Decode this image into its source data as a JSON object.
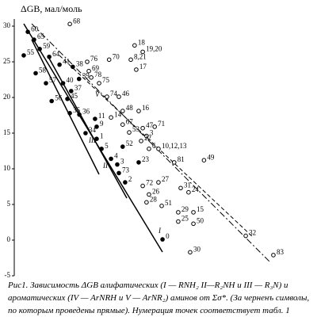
{
  "chart_data": {
    "type": "scatter",
    "y_label": "ΔGB, мал/моль",
    "ylim": [
      -5,
      31
    ],
    "yticks": [
      -5,
      0,
      5,
      10,
      15,
      20,
      25,
      30
    ],
    "xlim": [
      0,
      100
    ],
    "point_labels": [
      "60",
      "68",
      "65",
      "59",
      "55",
      "64",
      "58",
      "41",
      "38",
      "76",
      "70",
      "18",
      "19,20",
      "8,21",
      "17",
      "69",
      "57",
      "40",
      "39",
      "78",
      "75",
      "37",
      "56",
      "45",
      "35",
      "36",
      "74",
      "46",
      "48",
      "16",
      "11",
      "14",
      "9",
      "67",
      "34",
      "53",
      "47",
      "71",
      "3",
      "1",
      "22",
      "5",
      "52",
      "6",
      "10,12,13",
      "4",
      "23",
      "81",
      "49",
      "3",
      "73",
      "2",
      "72",
      "27",
      "26",
      "28",
      "31",
      "24",
      "51",
      "29",
      "15",
      "25",
      "50",
      "0",
      "30",
      "32",
      "83"
    ],
    "x": [
      5,
      20.5,
      7.3,
      9.4,
      3.5,
      12.9,
      7.9,
      16.7,
      21.6,
      26.9,
      35,
      44.4,
      47.4,
      43,
      45,
      27.5,
      11.7,
      18,
      23.9,
      28.4,
      31.3,
      21,
      13.8,
      19.6,
      20.5,
      24,
      34.2,
      38.6,
      40,
      45.9,
      29.8,
      35.7,
      30.4,
      40,
      26.3,
      42.4,
      47.4,
      51.8,
      48.8,
      30.4,
      46.8,
      32.2,
      40,
      49.7,
      53.2,
      35.7,
      45.9,
      59,
      70,
      38,
      38.6,
      40.9,
      47.4,
      53.2,
      49.7,
      48.8,
      61.4,
      64.3,
      54.4,
      60.5,
      66.1,
      60.5,
      66.1,
      54.7,
      64.9,
      85.4,
      95.6
    ],
    "values": [
      29.2,
      30.3,
      28.1,
      26.8,
      25.9,
      25.7,
      23.4,
      24.6,
      24.3,
      25,
      25.3,
      27.3,
      26.4,
      25.3,
      23.9,
      23.7,
      22,
      22,
      22.6,
      22.8,
      22,
      20.9,
      19.5,
      19.8,
      17.8,
      17.6,
      20.1,
      20.1,
      18.1,
      18.1,
      17,
      17.2,
      15.9,
      16.2,
      15,
      15.1,
      15.7,
      15.9,
      14.6,
      14.2,
      13.9,
      12.8,
      13.1,
      12.8,
      12.8,
      11.4,
      10.9,
      10.9,
      11.2,
      10.6,
      9.4,
      8.1,
      7.6,
      8.1,
      6.4,
      5.3,
      7.3,
      6.7,
      4.8,
      3.9,
      3.9,
      2.6,
      2.3,
      0.1,
      -1.7,
      0.6,
      -2.1
    ],
    "filled": [
      true,
      false,
      true,
      true,
      true,
      true,
      true,
      true,
      true,
      false,
      false,
      false,
      false,
      false,
      false,
      false,
      true,
      true,
      true,
      false,
      false,
      true,
      true,
      true,
      true,
      true,
      false,
      false,
      false,
      false,
      true,
      false,
      true,
      false,
      true,
      false,
      false,
      false,
      false,
      true,
      false,
      true,
      true,
      false,
      false,
      true,
      true,
      false,
      false,
      true,
      true,
      true,
      false,
      false,
      false,
      false,
      false,
      false,
      false,
      false,
      false,
      false,
      false,
      true,
      false,
      false,
      false
    ],
    "annotations": [
      "III",
      "II",
      "I",
      "V"
    ],
    "caption": "Рис1. Зависимость ΔGB алифатических (I — RNH₂ II—R₂NH и III — R₃N) и ароматических (IV — ArNRH и V — ArNR₂) аминов от Σσ*. (За черненъ символы, по которым проведены прямые). Нумерация точек соответствует табл. 1"
  }
}
